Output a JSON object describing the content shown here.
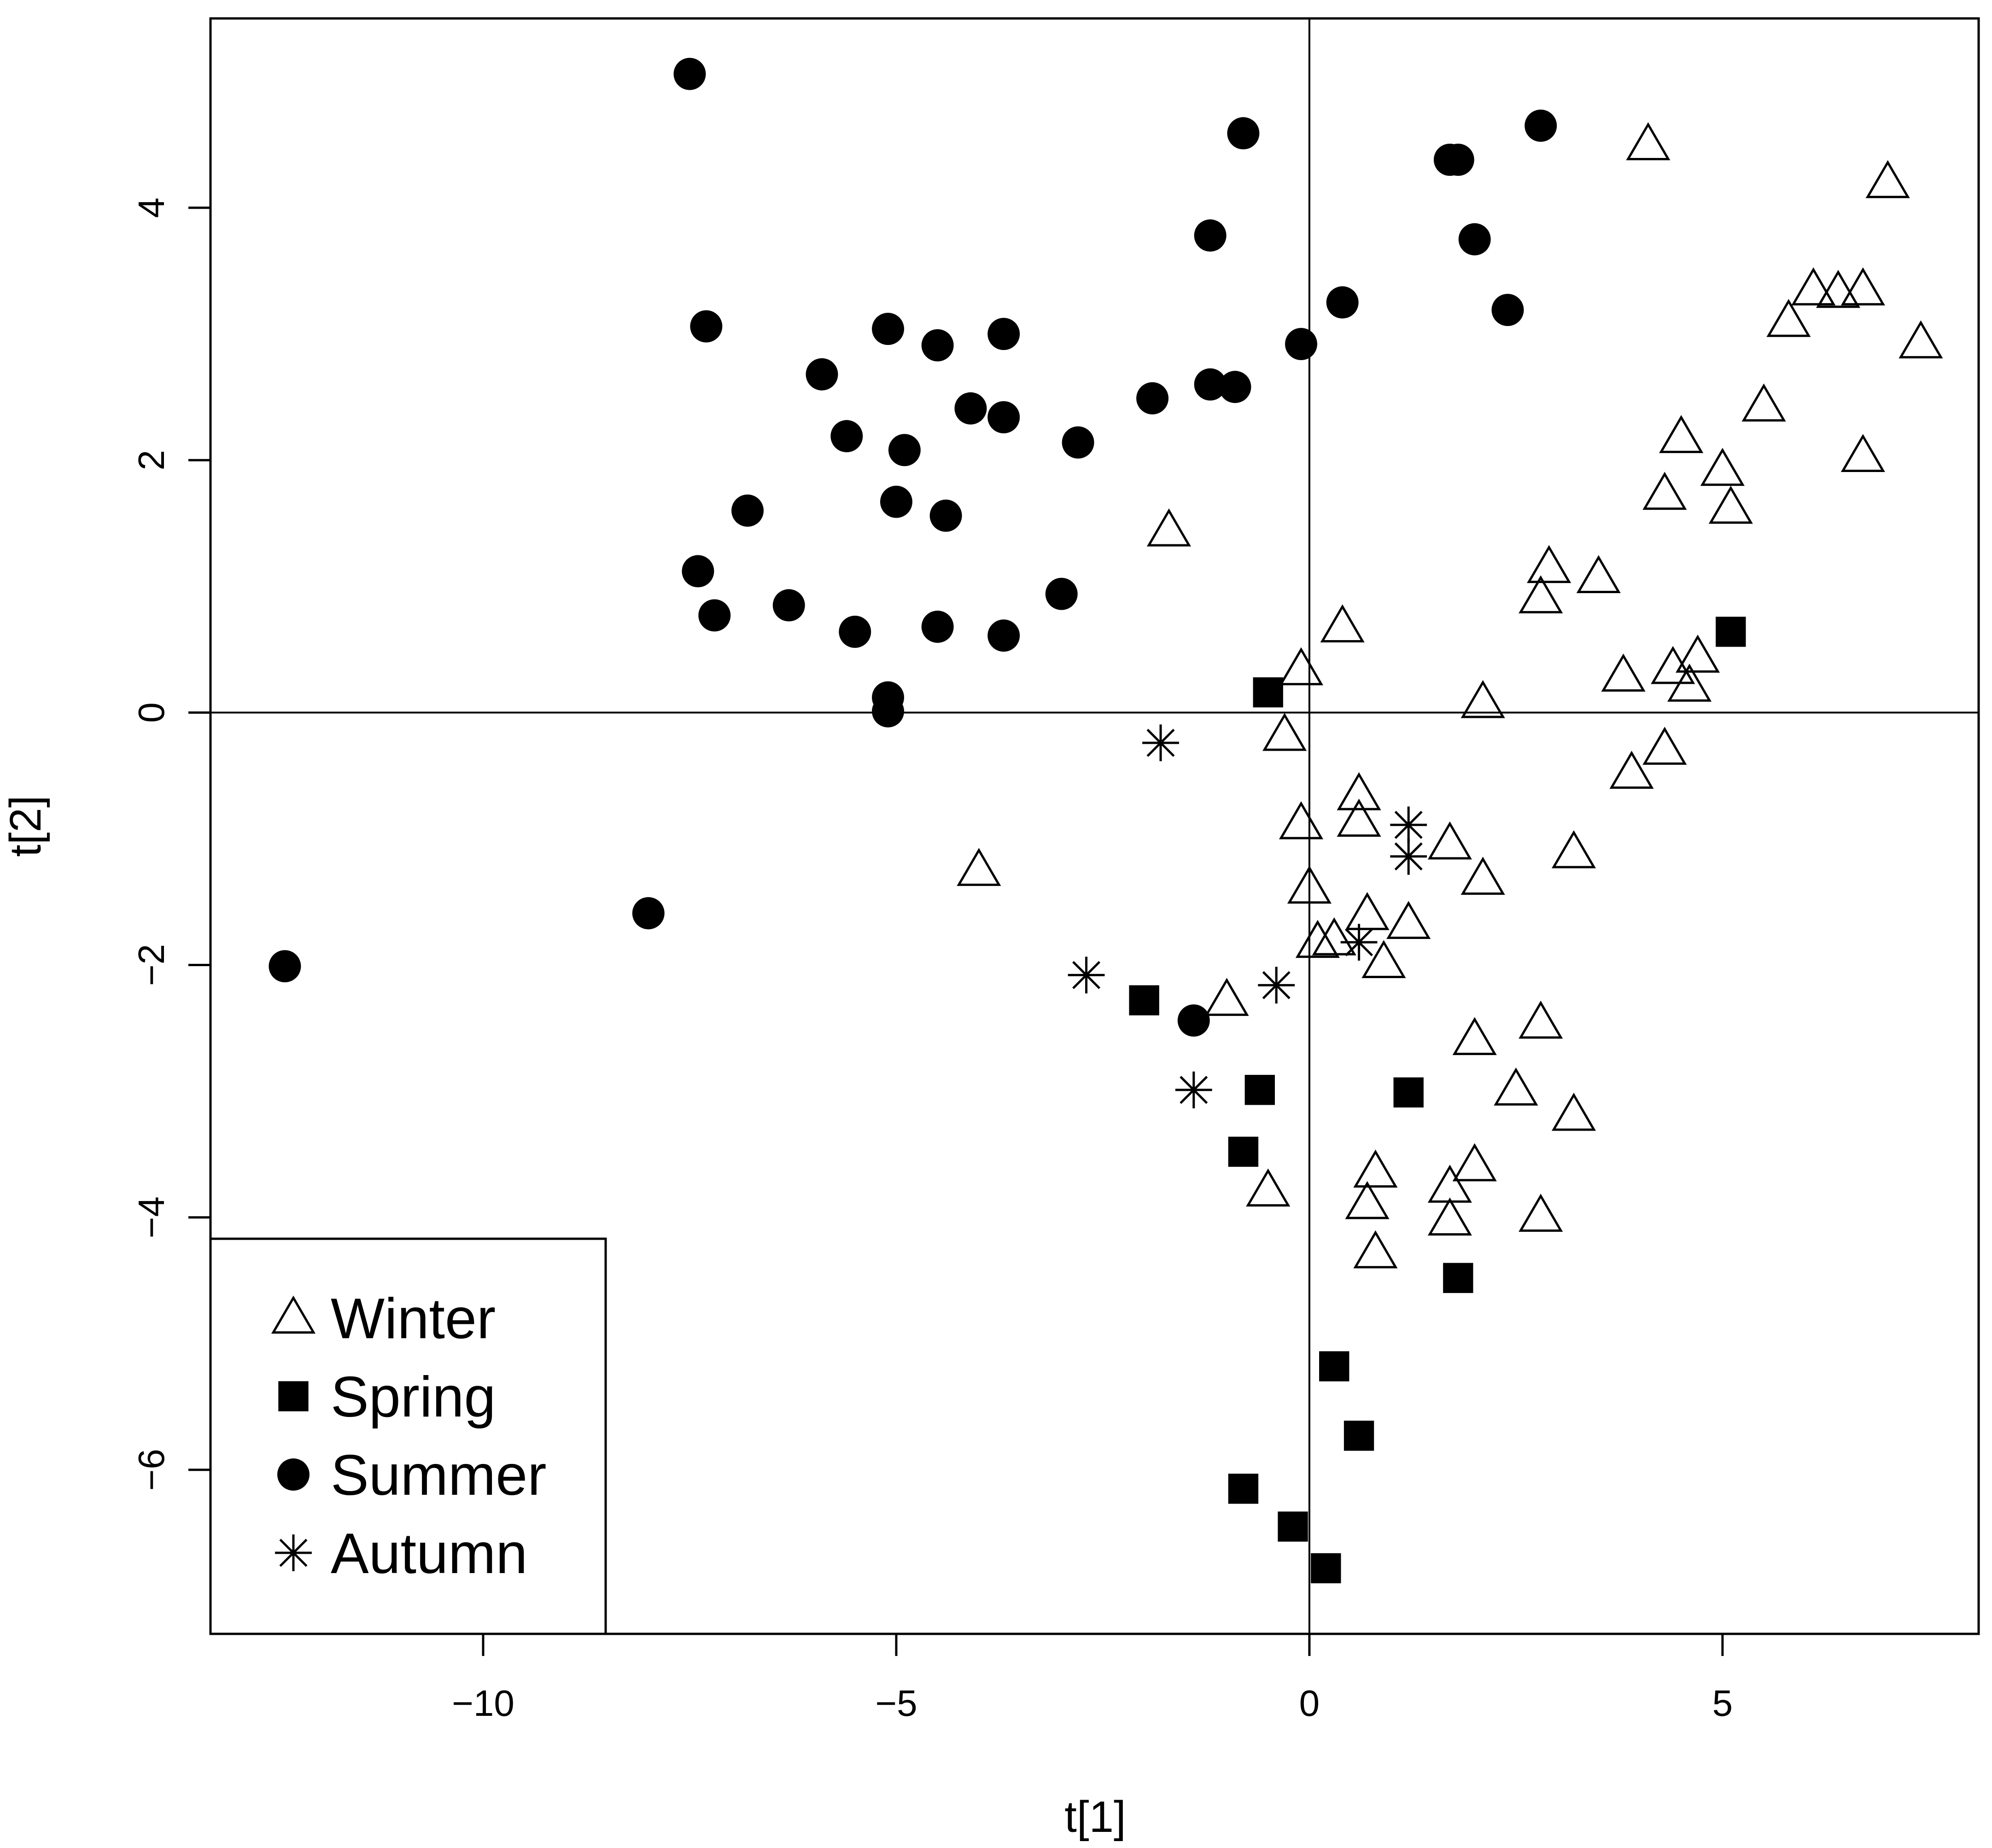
{
  "chart_data": {
    "type": "scatter",
    "title": "",
    "xlabel": "t[1]",
    "ylabel": "t[2]",
    "xlim": [
      -13.3,
      8.1
    ],
    "ylim": [
      -7.3,
      5.5
    ],
    "xticks": [
      -10,
      -5,
      0,
      5
    ],
    "yticks": [
      -6,
      -4,
      -2,
      0,
      2,
      4
    ],
    "reference_lines": {
      "x": 0,
      "y": 0
    },
    "grid": false,
    "legend_position": "bottom-left",
    "series": [
      {
        "name": "Winter",
        "marker": "open-triangle",
        "points": [
          [
            4.1,
            4.5
          ],
          [
            7.0,
            4.2
          ],
          [
            6.1,
            3.35
          ],
          [
            6.4,
            3.33
          ],
          [
            6.7,
            3.35
          ],
          [
            5.8,
            3.1
          ],
          [
            7.4,
            2.93
          ],
          [
            5.5,
            2.43
          ],
          [
            4.5,
            2.18
          ],
          [
            6.7,
            2.03
          ],
          [
            5.0,
            1.92
          ],
          [
            4.3,
            1.73
          ],
          [
            5.1,
            1.62
          ],
          [
            -1.7,
            1.44
          ],
          [
            2.9,
            1.15
          ],
          [
            3.5,
            1.07
          ],
          [
            2.8,
            0.91
          ],
          [
            0.4,
            0.68
          ],
          [
            4.7,
            0.44
          ],
          [
            4.4,
            0.35
          ],
          [
            3.8,
            0.29
          ],
          [
            -0.1,
            0.34
          ],
          [
            4.6,
            0.21
          ],
          [
            2.1,
            0.08
          ],
          [
            -0.3,
            -0.18
          ],
          [
            4.3,
            -0.29
          ],
          [
            3.9,
            -0.48
          ],
          [
            0.6,
            -0.65
          ],
          [
            0.6,
            -0.86
          ],
          [
            -0.1,
            -0.88
          ],
          [
            1.7,
            -1.04
          ],
          [
            3.2,
            -1.11
          ],
          [
            -4.0,
            -1.25
          ],
          [
            2.1,
            -1.32
          ],
          [
            0.0,
            -1.39
          ],
          [
            0.7,
            -1.6
          ],
          [
            1.2,
            -1.67
          ],
          [
            0.3,
            -1.8
          ],
          [
            0.1,
            -1.82
          ],
          [
            0.9,
            -1.98
          ],
          [
            -1.0,
            -2.28
          ],
          [
            2.8,
            -2.46
          ],
          [
            2.0,
            -2.59
          ],
          [
            2.5,
            -2.99
          ],
          [
            3.2,
            -3.19
          ],
          [
            0.8,
            -3.64
          ],
          [
            2.0,
            -3.59
          ],
          [
            1.7,
            -3.76
          ],
          [
            -0.5,
            -3.79
          ],
          [
            0.7,
            -3.89
          ],
          [
            2.8,
            -3.99
          ],
          [
            1.7,
            -4.02
          ],
          [
            0.8,
            -4.28
          ]
        ]
      },
      {
        "name": "Spring",
        "marker": "filled-square",
        "points": [
          [
            5.1,
            0.64
          ],
          [
            -0.5,
            0.16
          ],
          [
            -2.0,
            -2.28
          ],
          [
            -0.6,
            -2.99
          ],
          [
            1.2,
            -3.01
          ],
          [
            -0.8,
            -3.48
          ],
          [
            1.8,
            -4.48
          ],
          [
            0.3,
            -5.18
          ],
          [
            0.6,
            -5.73
          ],
          [
            -0.8,
            -6.15
          ],
          [
            -0.2,
            -6.45
          ],
          [
            0.2,
            -6.78
          ]
        ]
      },
      {
        "name": "Summer",
        "marker": "filled-circle",
        "points": [
          [
            -7.5,
            5.06
          ],
          [
            2.8,
            4.65
          ],
          [
            -0.8,
            4.59
          ],
          [
            1.7,
            4.38
          ],
          [
            1.8,
            4.38
          ],
          [
            -1.2,
            3.78
          ],
          [
            2.0,
            3.75
          ],
          [
            0.4,
            3.25
          ],
          [
            2.4,
            3.19
          ],
          [
            -7.3,
            3.06
          ],
          [
            -5.1,
            3.04
          ],
          [
            -3.7,
            3.0
          ],
          [
            -4.5,
            2.91
          ],
          [
            -0.1,
            2.92
          ],
          [
            -5.9,
            2.68
          ],
          [
            -1.2,
            2.6
          ],
          [
            -0.9,
            2.58
          ],
          [
            -1.9,
            2.49
          ],
          [
            -4.1,
            2.41
          ],
          [
            -3.7,
            2.34
          ],
          [
            -5.6,
            2.19
          ],
          [
            -2.8,
            2.14
          ],
          [
            -4.9,
            2.08
          ],
          [
            -5.0,
            1.67
          ],
          [
            -6.8,
            1.6
          ],
          [
            -4.4,
            1.56
          ],
          [
            -7.4,
            1.12
          ],
          [
            -3.0,
            0.94
          ],
          [
            -6.3,
            0.85
          ],
          [
            -7.2,
            0.77
          ],
          [
            -4.5,
            0.68
          ],
          [
            -5.5,
            0.64
          ],
          [
            -3.7,
            0.61
          ],
          [
            -5.1,
            0.12
          ],
          [
            -5.1,
            0.01
          ],
          [
            -8.0,
            -1.59
          ],
          [
            -12.4,
            -2.01
          ],
          [
            -1.4,
            -2.44
          ]
        ]
      },
      {
        "name": "Autumn",
        "marker": "asterisk",
        "points": [
          [
            -1.8,
            -0.24
          ],
          [
            1.2,
            -0.89
          ],
          [
            1.2,
            -1.14
          ],
          [
            0.6,
            -1.82
          ],
          [
            -2.7,
            -2.08
          ],
          [
            -0.4,
            -2.16
          ],
          [
            -1.4,
            -2.99
          ]
        ]
      }
    ]
  }
}
